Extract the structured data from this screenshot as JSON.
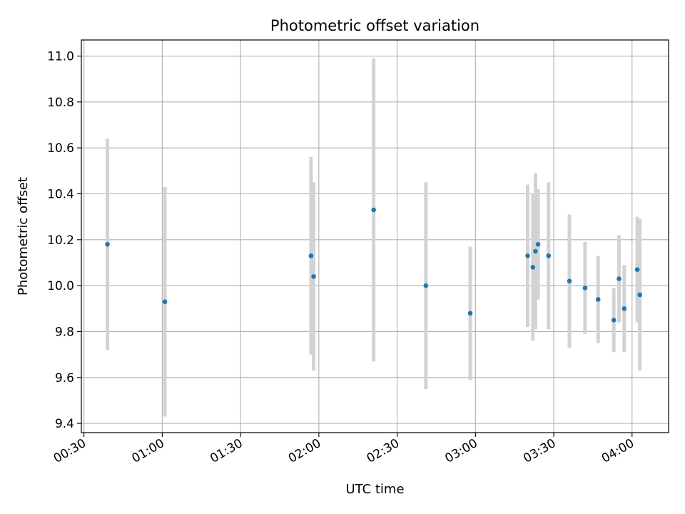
{
  "chart_data": {
    "type": "scatter",
    "title": "Photometric offset variation",
    "xlabel": "UTC time",
    "ylabel": "Photometric offset",
    "grid": true,
    "x_ticks": [
      "00:30",
      "01:00",
      "01:30",
      "02:00",
      "02:30",
      "03:00",
      "03:30",
      "04:00"
    ],
    "y_ticks": [
      9.4,
      9.6,
      9.8,
      10.0,
      10.2,
      10.4,
      10.6,
      10.8,
      11.0
    ],
    "xlim": [
      "00:29",
      "04:14"
    ],
    "ylim": [
      9.36,
      11.07
    ],
    "colors": {
      "points": "#1f77b4",
      "errorbars": "#d3d3d3",
      "grid": "#b0b0b0"
    },
    "points": [
      {
        "x": "00:39",
        "y": 10.18,
        "yerr": 0.46
      },
      {
        "x": "01:01",
        "y": 9.93,
        "yerr": 0.5
      },
      {
        "x": "01:57",
        "y": 10.13,
        "yerr": 0.43
      },
      {
        "x": "01:58",
        "y": 10.04,
        "yerr": 0.41
      },
      {
        "x": "02:21",
        "y": 10.33,
        "yerr": 0.66
      },
      {
        "x": "02:41",
        "y": 10.0,
        "yerr": 0.45
      },
      {
        "x": "02:58",
        "y": 9.88,
        "yerr": 0.29
      },
      {
        "x": "03:20",
        "y": 10.13,
        "yerr": 0.31
      },
      {
        "x": "03:22",
        "y": 10.08,
        "yerr": 0.32
      },
      {
        "x": "03:23",
        "y": 10.15,
        "yerr": 0.34
      },
      {
        "x": "03:24",
        "y": 10.18,
        "yerr": 0.24
      },
      {
        "x": "03:28",
        "y": 10.13,
        "yerr": 0.32
      },
      {
        "x": "03:36",
        "y": 10.02,
        "yerr": 0.29
      },
      {
        "x": "03:42",
        "y": 9.99,
        "yerr": 0.2
      },
      {
        "x": "03:47",
        "y": 9.94,
        "yerr": 0.19
      },
      {
        "x": "03:53",
        "y": 9.85,
        "yerr": 0.14
      },
      {
        "x": "03:55",
        "y": 10.03,
        "yerr": 0.19
      },
      {
        "x": "03:57",
        "y": 9.9,
        "yerr": 0.19
      },
      {
        "x": "04:02",
        "y": 10.07,
        "yerr": 0.23
      },
      {
        "x": "04:03",
        "y": 9.96,
        "yerr": 0.33
      }
    ]
  }
}
